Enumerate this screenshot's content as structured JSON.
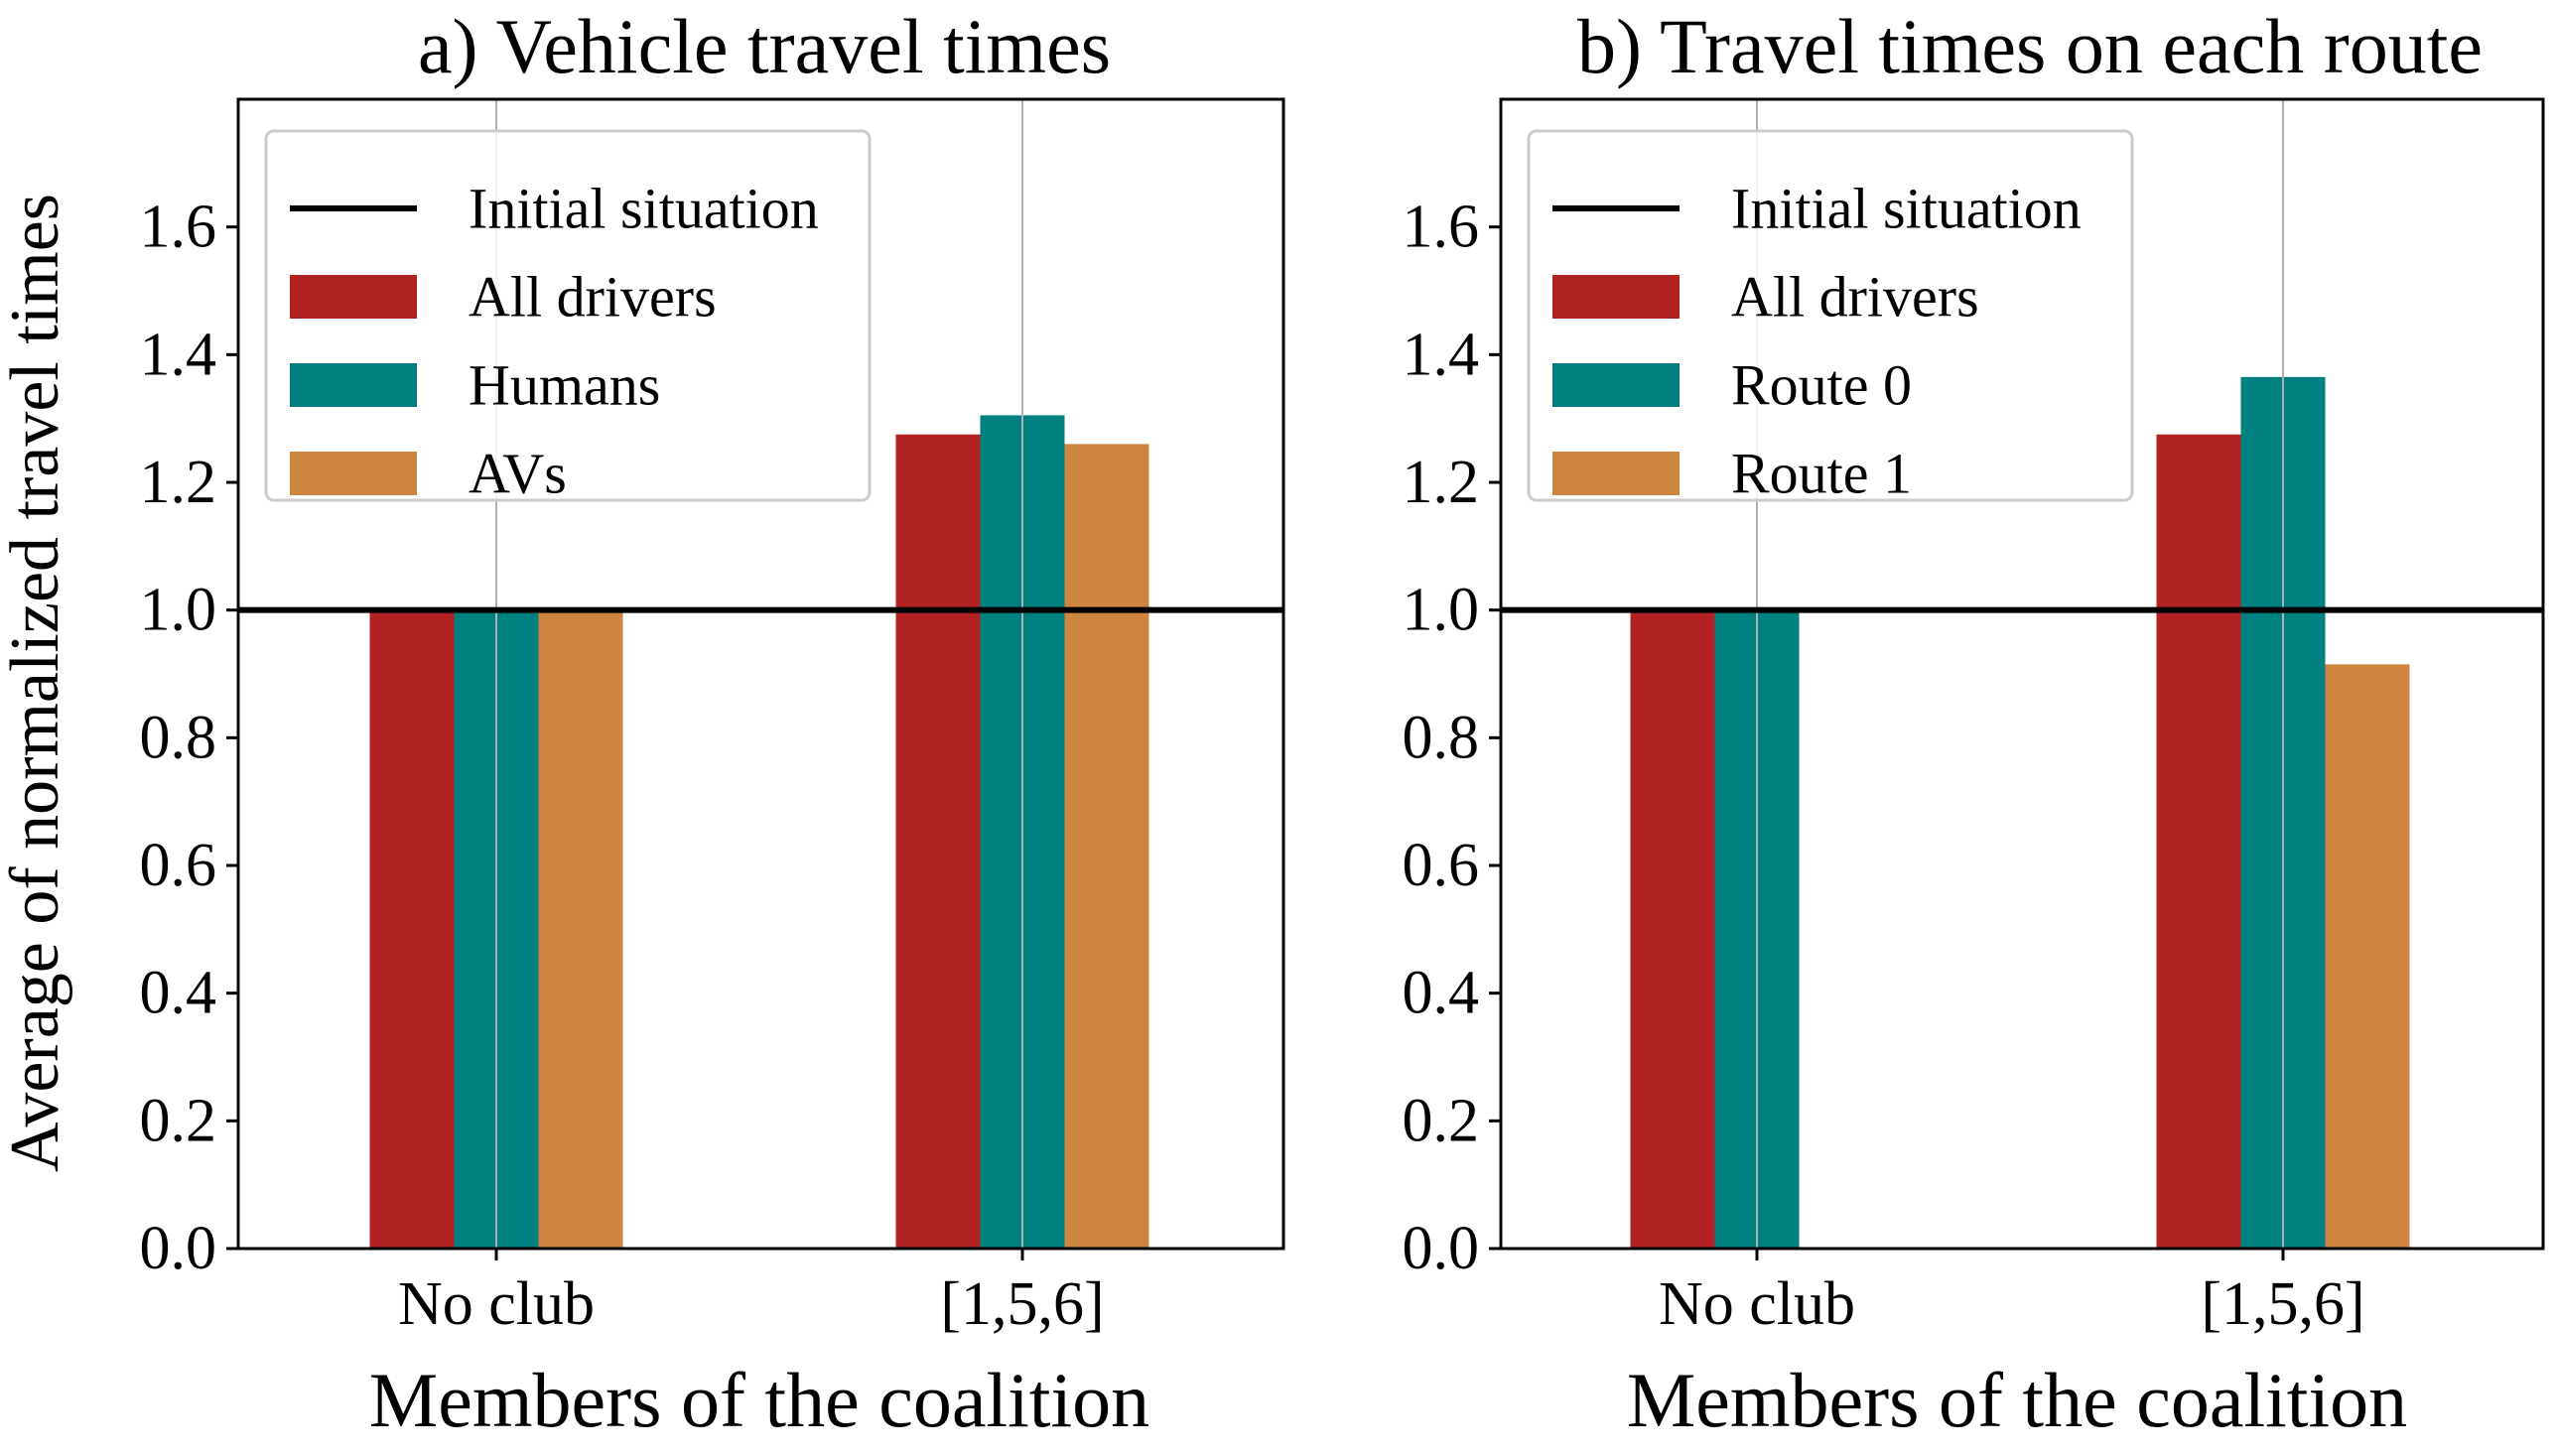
{
  "figure": {
    "ylabel": "Average of normalized travel times"
  },
  "chart_data": [
    {
      "type": "bar",
      "title": "a) Vehicle travel times",
      "xlabel": "Members of the coalition",
      "ylabel": "Average of normalized travel times",
      "ylim": [
        0,
        1.8
      ],
      "yticks": [
        "0.0",
        "0.2",
        "0.4",
        "0.6",
        "0.8",
        "1.0",
        "1.2",
        "1.4",
        "1.6"
      ],
      "categories": [
        "No club",
        "[1,5,6]"
      ],
      "reference_line": {
        "name": "Initial situation",
        "value": 1.0,
        "color": "#000000"
      },
      "series": [
        {
          "name": "All drivers",
          "color": "#b22222",
          "values": [
            1.0,
            1.275
          ]
        },
        {
          "name": "Humans",
          "color": "#008080",
          "values": [
            1.0,
            1.305
          ]
        },
        {
          "name": "AVs",
          "color": "#cd853f",
          "values": [
            1.0,
            1.26
          ]
        }
      ],
      "grid": "x",
      "legend": "top-left"
    },
    {
      "type": "bar",
      "title": "b) Travel times on each route",
      "xlabel": "Members of the coalition",
      "ylabel": "",
      "ylim": [
        0,
        1.8
      ],
      "yticks": [
        "0.0",
        "0.2",
        "0.4",
        "0.6",
        "0.8",
        "1.0",
        "1.2",
        "1.4",
        "1.6"
      ],
      "categories": [
        "No club",
        "[1,5,6]"
      ],
      "reference_line": {
        "name": "Initial situation",
        "value": 1.0,
        "color": "#000000"
      },
      "series": [
        {
          "name": "All drivers",
          "color": "#b22222",
          "values": [
            1.0,
            1.275
          ]
        },
        {
          "name": "Route 0",
          "color": "#008080",
          "values": [
            1.0,
            1.365
          ]
        },
        {
          "name": "Route 1",
          "color": "#cd853f",
          "values": [
            0,
            0.915
          ]
        }
      ],
      "grid": "x",
      "legend": "top-left"
    }
  ]
}
